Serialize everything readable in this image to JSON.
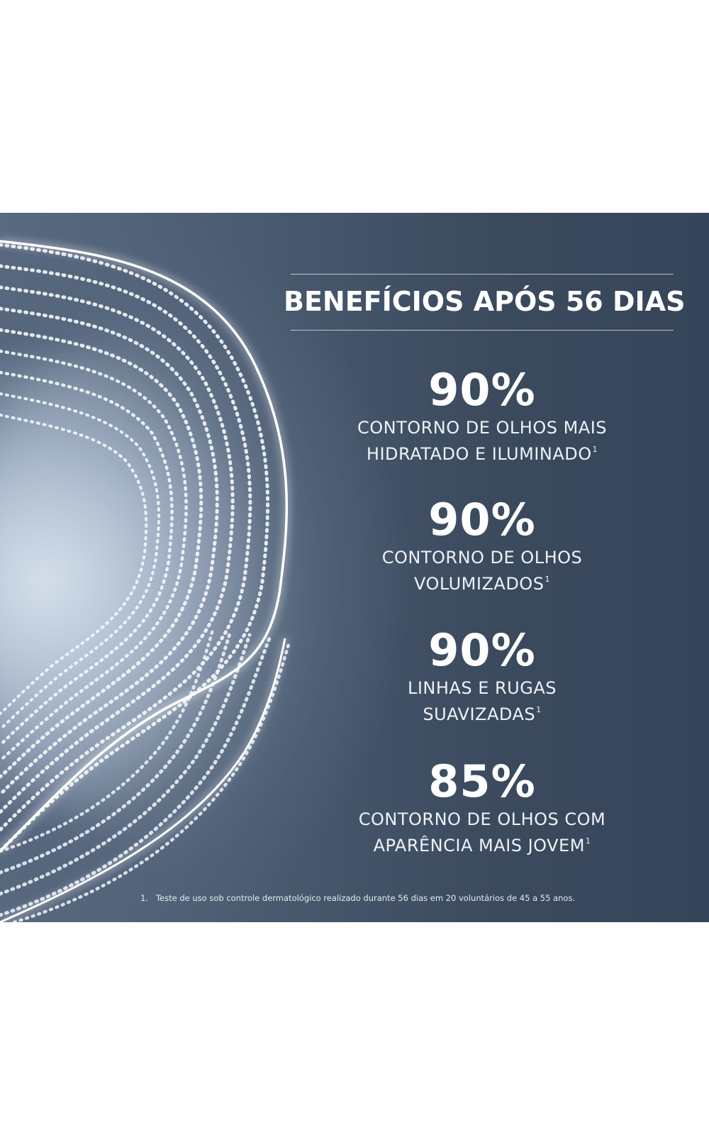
{
  "headline": "BENEFÍCIOS APÓS 56 DIAS",
  "benefits": [
    {
      "value": "90%",
      "line1": "CONTORNO DE OLHOS MAIS",
      "line2": "HIDRATADO E ILUMINADO",
      "note_ref": "1"
    },
    {
      "value": "90%",
      "line1": "CONTORNO DE OLHOS",
      "line2": "VOLUMIZADOS",
      "note_ref": "1"
    },
    {
      "value": "90%",
      "line1": "LINHAS E RUGAS",
      "line2": "SUAVIZADAS",
      "note_ref": "1"
    },
    {
      "value": "85%",
      "line1": "CONTORNO DE OLHOS COM",
      "line2": "APARÊNCIA MAIS JOVEM",
      "note_ref": "1"
    }
  ],
  "footnote": {
    "marker": "1.",
    "text": "Teste de uso sob controle dermatológico realizado durante 56 dias em 20 voluntários de 45 a 55 anos."
  },
  "colors": {
    "background_dark": "#3b4a5d",
    "glow": "#c6d3e2",
    "text": "#ffffff"
  },
  "icons": {
    "decoration": "dotted-light-wave-icon"
  }
}
